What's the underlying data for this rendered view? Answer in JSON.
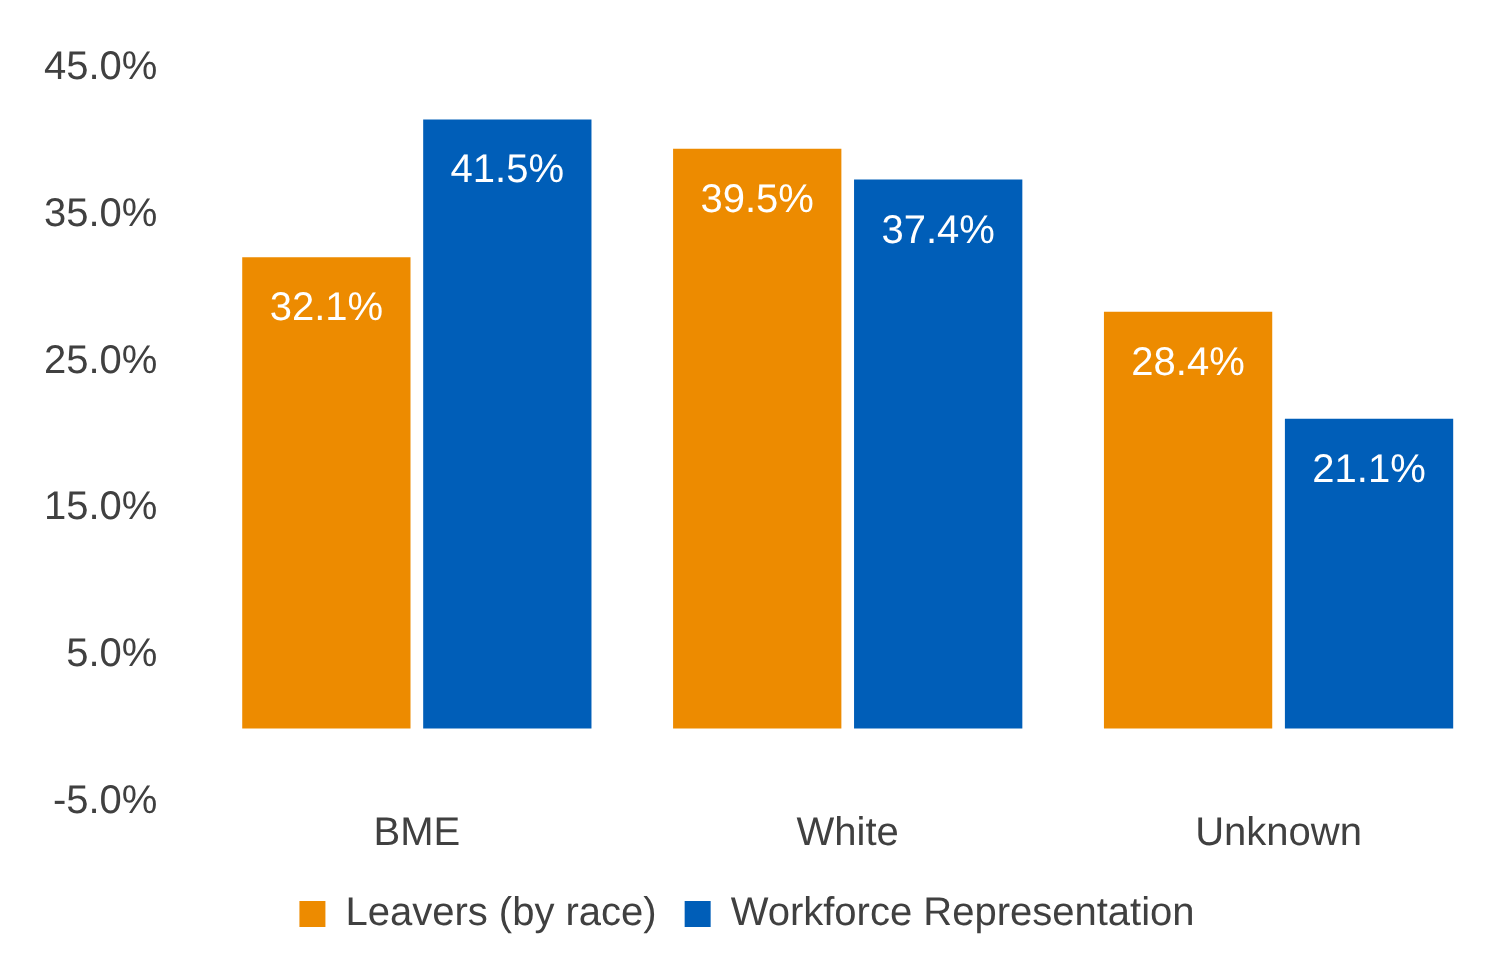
{
  "chart_data": {
    "type": "bar",
    "categories": [
      "BME",
      "White",
      "Unknown"
    ],
    "series": [
      {
        "name": "Leavers (by race)",
        "color": "#ed8b00",
        "values": [
          32.1,
          39.5,
          28.4
        ],
        "value_labels": [
          "32.1%",
          "39.5%",
          "28.4%"
        ]
      },
      {
        "name": "Workforce Representation",
        "color": "#005eb8",
        "values": [
          41.5,
          37.4,
          21.1
        ],
        "value_labels": [
          "41.5%",
          "37.4%",
          "21.1%"
        ]
      }
    ],
    "ylim": [
      -5,
      45
    ],
    "yticks": [
      {
        "value": -5,
        "label": "-5.0%"
      },
      {
        "value": 5,
        "label": "5.0%"
      },
      {
        "value": 15,
        "label": "15.0%"
      },
      {
        "value": 25,
        "label": "25.0%"
      },
      {
        "value": 35,
        "label": "35.0%"
      },
      {
        "value": 45,
        "label": "45.0%"
      }
    ],
    "grid": false,
    "legend": "bottom"
  }
}
